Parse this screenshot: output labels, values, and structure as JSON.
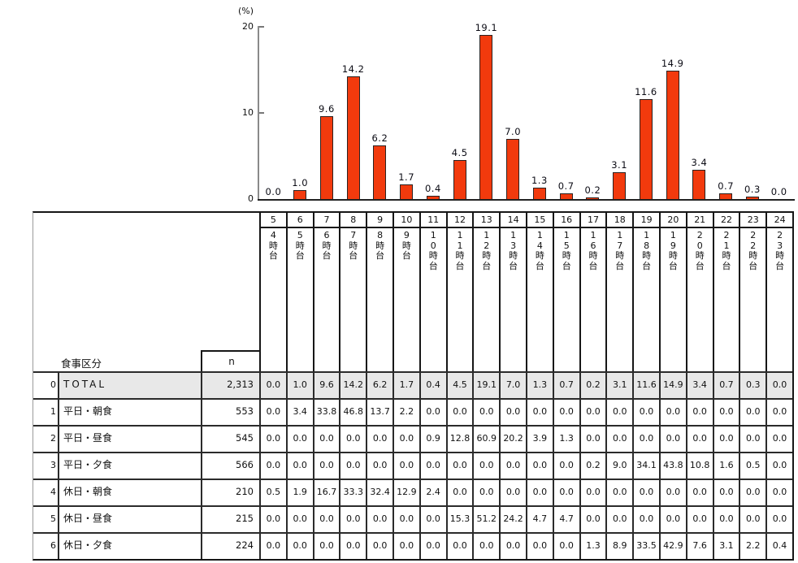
{
  "chart_data": {
    "type": "bar",
    "title": "",
    "xlabel": "",
    "ylabel": "(%)",
    "ylim": [
      0,
      20
    ],
    "y_tick_labels": [
      "20",
      "10",
      "0"
    ],
    "grid": false,
    "legend": "none",
    "series_name": "TOTAL",
    "bar_color": "#f23a0d",
    "categories": [
      "4時台",
      "5時台",
      "6時台",
      "7時台",
      "8時台",
      "9時台",
      "10時台",
      "11時台",
      "12時台",
      "13時台",
      "14時台",
      "15時台",
      "16時台",
      "17時台",
      "18時台",
      "19時台",
      "20時台",
      "21時台",
      "22時台",
      "23時台"
    ],
    "values": [
      0.0,
      1.0,
      9.6,
      14.2,
      6.2,
      1.7,
      0.4,
      4.5,
      19.1,
      7.0,
      1.3,
      0.7,
      0.2,
      3.1,
      11.6,
      14.9,
      3.4,
      0.7,
      0.3,
      0.0
    ]
  },
  "table": {
    "corner_label": "食事区分",
    "n_header": "n",
    "column_numbers": [
      "5",
      "6",
      "7",
      "8",
      "9",
      "10",
      "11",
      "12",
      "13",
      "14",
      "15",
      "16",
      "17",
      "18",
      "19",
      "20",
      "21",
      "22",
      "23",
      "24"
    ],
    "column_labels": [
      "4時台",
      "5時台",
      "6時台",
      "7時台",
      "8時台",
      "9時台",
      "10時台",
      "11時台",
      "12時台",
      "13時台",
      "14時台",
      "15時台",
      "16時台",
      "17時台",
      "18時台",
      "19時台",
      "20時台",
      "21時台",
      "22時台",
      "23時台"
    ],
    "highlight_color": "#e8e8e8",
    "rows": [
      {
        "index": "0",
        "label": "TOTAL",
        "n": "2,313",
        "highlight": true,
        "values": [
          "0.0",
          "1.0",
          "9.6",
          "14.2",
          "6.2",
          "1.7",
          "0.4",
          "4.5",
          "19.1",
          "7.0",
          "1.3",
          "0.7",
          "0.2",
          "3.1",
          "11.6",
          "14.9",
          "3.4",
          "0.7",
          "0.3",
          "0.0"
        ]
      },
      {
        "index": "1",
        "label": "平日・朝食",
        "n": "553",
        "highlight": false,
        "values": [
          "0.0",
          "3.4",
          "33.8",
          "46.8",
          "13.7",
          "2.2",
          "0.0",
          "0.0",
          "0.0",
          "0.0",
          "0.0",
          "0.0",
          "0.0",
          "0.0",
          "0.0",
          "0.0",
          "0.0",
          "0.0",
          "0.0",
          "0.0"
        ]
      },
      {
        "index": "2",
        "label": "平日・昼食",
        "n": "545",
        "highlight": false,
        "values": [
          "0.0",
          "0.0",
          "0.0",
          "0.0",
          "0.0",
          "0.0",
          "0.9",
          "12.8",
          "60.9",
          "20.2",
          "3.9",
          "1.3",
          "0.0",
          "0.0",
          "0.0",
          "0.0",
          "0.0",
          "0.0",
          "0.0",
          "0.0"
        ]
      },
      {
        "index": "3",
        "label": "平日・夕食",
        "n": "566",
        "highlight": false,
        "values": [
          "0.0",
          "0.0",
          "0.0",
          "0.0",
          "0.0",
          "0.0",
          "0.0",
          "0.0",
          "0.0",
          "0.0",
          "0.0",
          "0.0",
          "0.2",
          "9.0",
          "34.1",
          "43.8",
          "10.8",
          "1.6",
          "0.5",
          "0.0"
        ]
      },
      {
        "index": "4",
        "label": "休日・朝食",
        "n": "210",
        "highlight": false,
        "values": [
          "0.5",
          "1.9",
          "16.7",
          "33.3",
          "32.4",
          "12.9",
          "2.4",
          "0.0",
          "0.0",
          "0.0",
          "0.0",
          "0.0",
          "0.0",
          "0.0",
          "0.0",
          "0.0",
          "0.0",
          "0.0",
          "0.0",
          "0.0"
        ]
      },
      {
        "index": "5",
        "label": "休日・昼食",
        "n": "215",
        "highlight": false,
        "values": [
          "0.0",
          "0.0",
          "0.0",
          "0.0",
          "0.0",
          "0.0",
          "0.0",
          "15.3",
          "51.2",
          "24.2",
          "4.7",
          "4.7",
          "0.0",
          "0.0",
          "0.0",
          "0.0",
          "0.0",
          "0.0",
          "0.0",
          "0.0"
        ]
      },
      {
        "index": "6",
        "label": "休日・夕食",
        "n": "224",
        "highlight": false,
        "values": [
          "0.0",
          "0.0",
          "0.0",
          "0.0",
          "0.0",
          "0.0",
          "0.0",
          "0.0",
          "0.0",
          "0.0",
          "0.0",
          "0.0",
          "1.3",
          "8.9",
          "33.5",
          "42.9",
          "7.6",
          "3.1",
          "2.2",
          "0.4"
        ]
      }
    ]
  }
}
